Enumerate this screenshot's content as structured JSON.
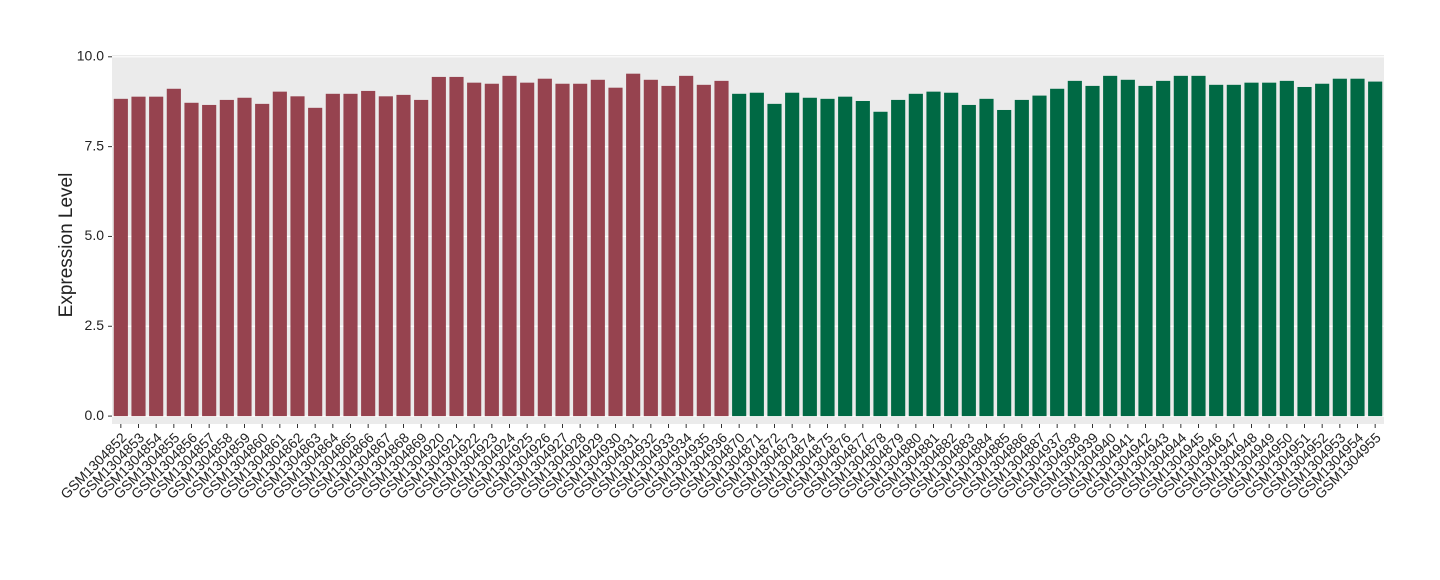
{
  "chart_data": {
    "type": "bar",
    "y_label": "Expression Level",
    "categories": [
      "GSM1304852",
      "GSM1304853",
      "GSM1304854",
      "GSM1304855",
      "GSM1304856",
      "GSM1304857",
      "GSM1304858",
      "GSM1304859",
      "GSM1304860",
      "GSM1304861",
      "GSM1304862",
      "GSM1304863",
      "GSM1304864",
      "GSM1304865",
      "GSM1304866",
      "GSM1304867",
      "GSM1304868",
      "GSM1304869",
      "GSM1304920",
      "GSM1304921",
      "GSM1304922",
      "GSM1304923",
      "GSM1304924",
      "GSM1304925",
      "GSM1304926",
      "GSM1304927",
      "GSM1304928",
      "GSM1304929",
      "GSM1304930",
      "GSM1304931",
      "GSM1304932",
      "GSM1304933",
      "GSM1304934",
      "GSM1304935",
      "GSM1304936",
      "GSM1304870",
      "GSM1304871",
      "GSM1304872",
      "GSM1304873",
      "GSM1304874",
      "GSM1304875",
      "GSM1304876",
      "GSM1304877",
      "GSM1304878",
      "GSM1304879",
      "GSM1304880",
      "GSM1304881",
      "GSM1304882",
      "GSM1304883",
      "GSM1304884",
      "GSM1304885",
      "GSM1304886",
      "GSM1304887",
      "GSM1304937",
      "GSM1304938",
      "GSM1304939",
      "GSM1304940",
      "GSM1304941",
      "GSM1304942",
      "GSM1304943",
      "GSM1304944",
      "GSM1304945",
      "GSM1304946",
      "GSM1304947",
      "GSM1304948",
      "GSM1304949",
      "GSM1304950",
      "GSM1304951",
      "GSM1304952",
      "GSM1304953",
      "GSM1304954",
      "GSM1304955"
    ],
    "values": [
      8.83,
      8.89,
      8.89,
      9.11,
      8.72,
      8.66,
      8.8,
      8.86,
      8.69,
      9.03,
      8.9,
      8.58,
      8.97,
      8.97,
      9.05,
      8.9,
      8.94,
      8.8,
      9.44,
      9.44,
      9.28,
      9.25,
      9.47,
      9.28,
      9.39,
      9.25,
      9.25,
      9.36,
      9.14,
      9.53,
      9.36,
      9.19,
      9.47,
      9.22,
      9.33,
      8.97,
      9.0,
      8.69,
      9.0,
      8.86,
      8.83,
      8.89,
      8.77,
      8.47,
      8.8,
      8.97,
      9.03,
      9.0,
      8.66,
      8.83,
      8.52,
      8.8,
      8.92,
      9.11,
      9.33,
      9.19,
      9.47,
      9.36,
      9.19,
      9.33,
      9.47,
      9.47,
      9.22,
      9.22,
      9.28,
      9.28,
      9.33,
      9.16,
      9.25,
      9.39,
      9.39,
      9.31
    ],
    "colors": [
      "#96434f",
      "#96434f",
      "#96434f",
      "#96434f",
      "#96434f",
      "#96434f",
      "#96434f",
      "#96434f",
      "#96434f",
      "#96434f",
      "#96434f",
      "#96434f",
      "#96434f",
      "#96434f",
      "#96434f",
      "#96434f",
      "#96434f",
      "#96434f",
      "#96434f",
      "#96434f",
      "#96434f",
      "#96434f",
      "#96434f",
      "#96434f",
      "#96434f",
      "#96434f",
      "#96434f",
      "#96434f",
      "#96434f",
      "#96434f",
      "#96434f",
      "#96434f",
      "#96434f",
      "#96434f",
      "#96434f",
      "#006944",
      "#006944",
      "#006944",
      "#006944",
      "#006944",
      "#006944",
      "#006944",
      "#006944",
      "#006944",
      "#006944",
      "#006944",
      "#006944",
      "#006944",
      "#006944",
      "#006944",
      "#006944",
      "#006944",
      "#006944",
      "#006944",
      "#006944",
      "#006944",
      "#006944",
      "#006944",
      "#006944",
      "#006944",
      "#006944",
      "#006944",
      "#006944",
      "#006944",
      "#006944",
      "#006944",
      "#006944",
      "#006944",
      "#006944",
      "#006944",
      "#006944",
      "#006944"
    ],
    "ylim": [
      -0.22,
      10.05
    ],
    "yticks": [
      {
        "value": 0,
        "label": "0.0"
      },
      2.5,
      {
        "value": 5,
        "label": "5.0"
      },
      7.5,
      {
        "value": 10,
        "label": "10.0"
      }
    ],
    "grid": true
  }
}
